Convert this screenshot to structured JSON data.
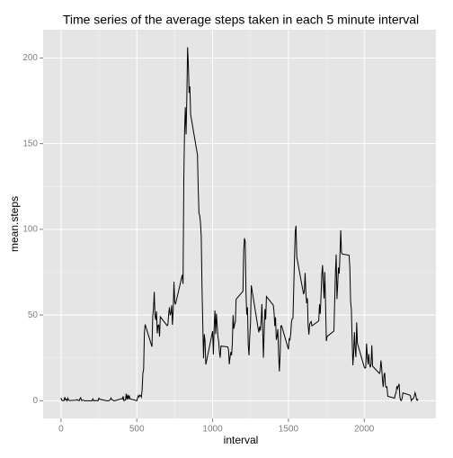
{
  "chart_data": {
    "type": "line",
    "title": "Time series of the average steps taken in each 5 minute interval",
    "x_label": "interval",
    "y_label": "mean.steps",
    "color": "#000000",
    "grid": true,
    "xlim": [
      -117.75,
      2472.75
    ],
    "ylim": [
      -10.31,
      216.48
    ],
    "xticks": [
      0,
      500,
      1000,
      1500,
      2000
    ],
    "yticks": [
      0,
      50,
      100,
      150,
      200
    ],
    "x": [
      0,
      5,
      10,
      15,
      20,
      25,
      30,
      35,
      40,
      45,
      50,
      55,
      100,
      105,
      110,
      115,
      120,
      125,
      130,
      135,
      140,
      145,
      150,
      155,
      200,
      205,
      210,
      215,
      220,
      225,
      230,
      235,
      240,
      245,
      250,
      255,
      300,
      305,
      310,
      315,
      320,
      325,
      330,
      335,
      340,
      345,
      350,
      355,
      400,
      405,
      410,
      415,
      420,
      425,
      430,
      435,
      440,
      445,
      450,
      455,
      500,
      505,
      510,
      515,
      520,
      525,
      530,
      535,
      540,
      545,
      550,
      555,
      600,
      605,
      610,
      615,
      620,
      625,
      630,
      635,
      640,
      645,
      650,
      655,
      700,
      705,
      710,
      715,
      720,
      725,
      730,
      735,
      740,
      745,
      750,
      755,
      800,
      805,
      810,
      815,
      820,
      825,
      830,
      835,
      840,
      845,
      850,
      855,
      900,
      905,
      910,
      915,
      920,
      925,
      930,
      935,
      940,
      945,
      950,
      955,
      1000,
      1005,
      1010,
      1015,
      1020,
      1025,
      1030,
      1035,
      1040,
      1045,
      1050,
      1055,
      1100,
      1105,
      1110,
      1115,
      1120,
      1125,
      1130,
      1135,
      1140,
      1145,
      1150,
      1155,
      1200,
      1205,
      1210,
      1215,
      1220,
      1225,
      1230,
      1235,
      1240,
      1245,
      1250,
      1255,
      1300,
      1305,
      1310,
      1315,
      1320,
      1325,
      1330,
      1335,
      1340,
      1345,
      1350,
      1355,
      1400,
      1405,
      1410,
      1415,
      1420,
      1425,
      1430,
      1435,
      1440,
      1445,
      1450,
      1455,
      1500,
      1505,
      1510,
      1515,
      1520,
      1525,
      1530,
      1535,
      1540,
      1545,
      1550,
      1555,
      1600,
      1605,
      1610,
      1615,
      1620,
      1625,
      1630,
      1635,
      1640,
      1645,
      1650,
      1655,
      1700,
      1705,
      1710,
      1715,
      1720,
      1725,
      1730,
      1735,
      1740,
      1745,
      1750,
      1755,
      1800,
      1805,
      1810,
      1815,
      1820,
      1825,
      1830,
      1835,
      1840,
      1845,
      1850,
      1855,
      1900,
      1905,
      1910,
      1915,
      1920,
      1925,
      1930,
      1935,
      1940,
      1945,
      1950,
      1955,
      2000,
      2005,
      2010,
      2015,
      2020,
      2025,
      2030,
      2035,
      2040,
      2045,
      2050,
      2055,
      2100,
      2105,
      2110,
      2115,
      2120,
      2125,
      2130,
      2135,
      2140,
      2145,
      2150,
      2155,
      2200,
      2205,
      2210,
      2215,
      2220,
      2225,
      2230,
      2235,
      2240,
      2245,
      2250,
      2255,
      2300,
      2305,
      2310,
      2315,
      2320,
      2325,
      2330,
      2335,
      2340,
      2345,
      2350,
      2355
    ],
    "values": [
      1.7,
      0.3,
      0.1,
      0.2,
      0.1,
      2.1,
      0.5,
      0.9,
      0,
      1.5,
      0.3,
      0.1,
      0.3,
      0.7,
      0.2,
      0.3,
      0,
      1.1,
      1.8,
      0.2,
      0.2,
      0.4,
      0.3,
      0,
      0,
      0,
      1.1,
      0,
      0,
      0.1,
      0,
      0.2,
      0,
      0,
      1.5,
      0.9,
      0,
      0,
      0,
      0,
      0.2,
      0.6,
      1.6,
      0.6,
      0.5,
      0.1,
      0,
      0,
      1.2,
      0.9,
      2.6,
      0,
      0.3,
      0.4,
      4.1,
      0.7,
      3.5,
      0.8,
      3.1,
      1.1,
      0,
      1.6,
      3,
      2.2,
      3.3,
      3,
      2.1,
      6.1,
      16,
      18.3,
      39.5,
      44.5,
      31.5,
      49.3,
      53.8,
      63.5,
      50,
      47.1,
      52.2,
      39.3,
      44,
      44.2,
      37.4,
      49,
      43.8,
      44.4,
      50.5,
      54.5,
      49.9,
      51,
      55.7,
      44.3,
      52.3,
      69.5,
      57.8,
      56.2,
      73.4,
      68.2,
      129.4,
      157.5,
      171.2,
      155.4,
      177.3,
      206.2,
      195.9,
      179.6,
      183.4,
      167,
      143.5,
      124,
      109.1,
      108.1,
      103.7,
      95.97,
      66.2,
      45.2,
      24.8,
      38.8,
      34.98,
      21.1,
      40.6,
      26.98,
      42.4,
      52.7,
      38.9,
      50.8,
      44.3,
      37.4,
      34.7,
      28.3,
      25.1,
      31.9,
      31.4,
      29.7,
      21.3,
      25.5,
      28.4,
      26.5,
      33.4,
      49.98,
      42,
      44.6,
      46,
      59.2,
      63.9,
      87.7,
      94.8,
      92.8,
      63.4,
      50.2,
      54.5,
      32.4,
      26.5,
      37.7,
      45.1,
      67.3,
      42.3,
      39.9,
      43.3,
      40.98,
      46.2,
      56.4,
      42.8,
      25.1,
      40,
      53.5,
      47.3,
      60.8,
      55.8,
      51.96,
      43.6,
      48.7,
      35.5,
      37.5,
      41.8,
      27.5,
      17.1,
      26.1,
      43.6,
      43.8,
      30,
      36.1,
      35.5,
      38.8,
      45.96,
      47.8,
      48.1,
      65.3,
      82.9,
      98.7,
      102.1,
      83.96,
      62.1,
      64.1,
      74.5,
      63.2,
      56.9,
      59.8,
      43.9,
      38.6,
      44.7,
      45.5,
      46.2,
      43.7,
      46.6,
      56.3,
      50.7,
      61.2,
      73.4,
      79.1,
      68.9,
      59.7,
      75.1,
      56.5,
      34.8,
      37.5,
      40.7,
      58,
      74.7,
      85.3,
      59.3,
      67.8,
      77.7,
      74.2,
      85.3,
      99.5,
      86.6,
      85.6,
      84.9,
      77.8,
      58,
      53.4,
      36.3,
      20.7,
      27.4,
      40,
      30.2,
      25.5,
      45.7,
      33.5,
      19.6,
      19,
      19.3,
      33.3,
      26.8,
      21.2,
      27.3,
      21.3,
      19.5,
      21.3,
      32.3,
      20.2,
      15.9,
      17.2,
      23.5,
      19.2,
      12.5,
      8,
      14.7,
      16.3,
      8.7,
      7.8,
      8.1,
      2.6,
      1.5,
      3.7,
      4.8,
      8.5,
      7.1,
      8.7,
      9.8,
      2.2,
      0.3,
      0.1,
      1.6,
      4.6,
      3.3,
      2.8,
      0,
      0.8,
      0.96,
      1.6,
      2.6,
      4.7,
      3.3,
      0.6,
      0.2,
      1.1
    ]
  }
}
